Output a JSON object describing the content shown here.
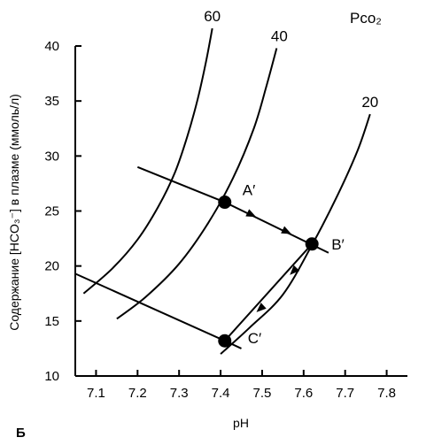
{
  "chart_data": {
    "type": "line",
    "panel_label": "Б",
    "xlabel": "pH",
    "ylabel": "Содержание [HCO₃⁻] в плазме (ммоль/л)",
    "xlim": [
      7.05,
      7.85
    ],
    "ylim": [
      10,
      40
    ],
    "x_ticks": [
      7.1,
      7.2,
      7.3,
      7.4,
      7.5,
      7.6,
      7.7,
      7.8
    ],
    "x_tick_labels": [
      "7.1",
      "7.2",
      "7.3",
      "7.4",
      "7.5",
      "7.6",
      "7.7",
      "7.8"
    ],
    "y_ticks": [
      10,
      15,
      20,
      25,
      30,
      35,
      40
    ],
    "y_tick_labels": [
      "10",
      "15",
      "20",
      "25",
      "30",
      "35",
      "40"
    ],
    "isobar_title": "Pco₂",
    "isobars": [
      {
        "name": "60",
        "points": [
          [
            7.07,
            17.5
          ],
          [
            7.14,
            19.8
          ],
          [
            7.2,
            22.4
          ],
          [
            7.25,
            25.4
          ],
          [
            7.29,
            28.5
          ],
          [
            7.32,
            31.8
          ],
          [
            7.345,
            35.2
          ],
          [
            7.365,
            38.6
          ],
          [
            7.38,
            41.6
          ]
        ]
      },
      {
        "name": "40",
        "points": [
          [
            7.15,
            15.2
          ],
          [
            7.22,
            17.2
          ],
          [
            7.3,
            20.2
          ],
          [
            7.37,
            23.9
          ],
          [
            7.43,
            28.0
          ],
          [
            7.48,
            32.5
          ],
          [
            7.51,
            36.3
          ],
          [
            7.535,
            39.8
          ]
        ]
      },
      {
        "name": "20",
        "points": [
          [
            7.4,
            12.0
          ],
          [
            7.47,
            14.4
          ],
          [
            7.55,
            17.4
          ],
          [
            7.62,
            21.9
          ],
          [
            7.68,
            26.3
          ],
          [
            7.73,
            30.5
          ],
          [
            7.76,
            33.8
          ]
        ]
      }
    ],
    "buffer_lines": [
      {
        "name": "A′–B′",
        "points": [
          [
            7.2,
            29.0
          ],
          [
            7.41,
            25.8
          ],
          [
            7.66,
            21.2
          ]
        ]
      },
      {
        "name": "C′",
        "points": [
          [
            7.05,
            19.3
          ],
          [
            7.41,
            13.2
          ],
          [
            7.45,
            12.5
          ]
        ]
      }
    ],
    "path": {
      "points": [
        [
          7.41,
          25.8
        ],
        [
          7.62,
          22.0
        ],
        [
          7.41,
          13.2
        ]
      ],
      "labels": [
        "A′",
        "B′",
        "C′"
      ],
      "arrows": [
        {
          "at": [
            7.475,
            24.65
          ],
          "toward": [
            7.62,
            22.0
          ]
        },
        {
          "at": [
            7.56,
            23.1
          ],
          "toward": [
            7.62,
            22.0
          ]
        },
        {
          "at": [
            7.575,
            19.5
          ],
          "toward": [
            7.41,
            13.2
          ]
        },
        {
          "at": [
            7.495,
            16.1
          ],
          "toward": [
            7.41,
            13.2
          ]
        }
      ]
    }
  }
}
